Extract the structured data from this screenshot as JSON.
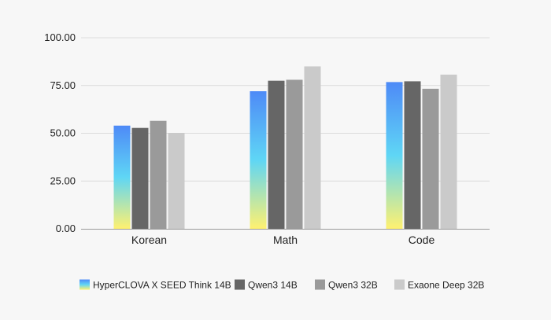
{
  "chart_data": {
    "type": "bar",
    "title": "",
    "xlabel": "",
    "ylabel": "",
    "categories": [
      "Korean",
      "Math",
      "Code"
    ],
    "ylim": [
      0,
      100
    ],
    "yticks": [
      "0.00",
      "25.00",
      "50.00",
      "75.00",
      "100.00"
    ],
    "grid": true,
    "legend_position": "bottom",
    "series": [
      {
        "name": "HyperCLOVA X SEED Think 14B",
        "values": [
          54.0,
          72.0,
          76.8
        ],
        "fill": "gradient",
        "gradient_colors": [
          "#fff170",
          "#5fd6f5",
          "#4e8af7"
        ]
      },
      {
        "name": "Qwen3 14B",
        "values": [
          52.8,
          77.5,
          77.2
        ],
        "color": "#666666"
      },
      {
        "name": "Qwen3 32B",
        "values": [
          56.5,
          78.0,
          73.3
        ],
        "color": "#9a9a9a"
      },
      {
        "name": "Exaone Deep 32B",
        "values": [
          50.2,
          85.0,
          80.7
        ],
        "color": "#cacaca"
      }
    ]
  }
}
